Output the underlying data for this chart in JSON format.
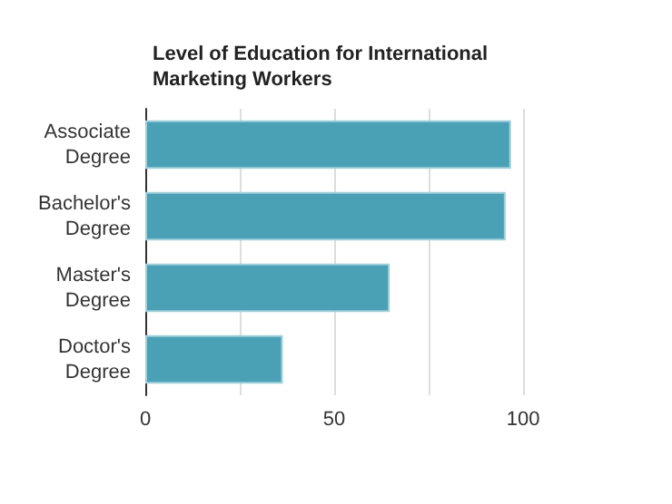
{
  "chart_data": {
    "type": "bar",
    "orientation": "horizontal",
    "title": "Level of Education for International Marketing Workers",
    "categories": [
      "Associate Degree",
      "Bachelor's Degree",
      "Master's Degree",
      "Doctor's Degree"
    ],
    "values": [
      96.8,
      95.4,
      64.7,
      36.4
    ],
    "color": "#4aa0b4",
    "xlim": [
      0,
      100
    ],
    "xticks": [
      0,
      {
        "value": 25,
        "label": null
      },
      50,
      {
        "value": 75,
        "label": null
      },
      100
    ],
    "grid": "x"
  }
}
